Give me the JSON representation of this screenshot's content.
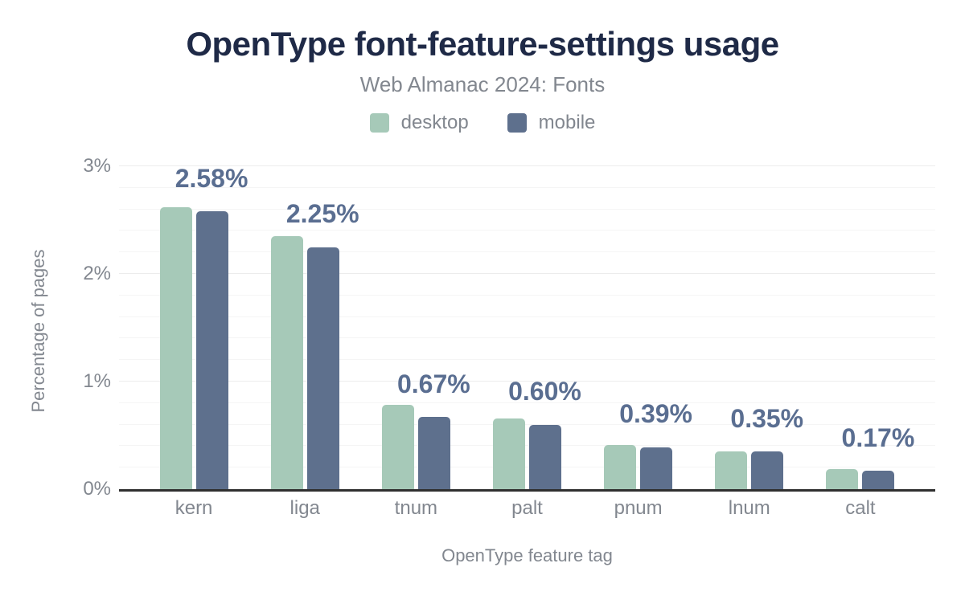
{
  "header": {
    "title": "OpenType font-feature-settings usage",
    "subtitle": "Web Almanac 2024: Fonts"
  },
  "axes": {
    "y_title": "Percentage of pages",
    "x_title": "OpenType feature tag",
    "y_ticks": [
      {
        "label": "0%",
        "value": 0
      },
      {
        "label": "1%",
        "value": 1
      },
      {
        "label": "2%",
        "value": 2
      },
      {
        "label": "3%",
        "value": 3
      }
    ]
  },
  "chart_data": {
    "type": "bar",
    "title": "OpenType font-feature-settings usage",
    "subtitle": "Web Almanac 2024: Fonts",
    "xlabel": "OpenType feature tag",
    "ylabel": "Percentage of pages",
    "categories": [
      "kern",
      "liga",
      "tnum",
      "palt",
      "pnum",
      "lnum",
      "calt"
    ],
    "series": [
      {
        "name": "desktop",
        "color": "#a6c9b8",
        "values": [
          2.62,
          2.35,
          0.78,
          0.66,
          0.41,
          0.35,
          0.19
        ]
      },
      {
        "name": "mobile",
        "color": "#5e708d",
        "values": [
          2.58,
          2.25,
          0.67,
          0.6,
          0.39,
          0.35,
          0.17
        ]
      }
    ],
    "annotations": [
      "2.58%",
      "2.25%",
      "0.67%",
      "0.60%",
      "0.39%",
      "0.35%",
      "0.17%"
    ],
    "annotation_series": "mobile",
    "ylim": [
      0,
      3
    ],
    "ytick_step": 1,
    "grid_step": 0.2,
    "grid": true,
    "legend_position": "top"
  },
  "colors": {
    "background": "#ffffff",
    "title": "#1f2a47",
    "annotation": "#5a6e91",
    "muted_text": "#82878f",
    "grid_minor": "#f5f5f5",
    "grid_major": "#ececec",
    "axis_line": "#2f2f2f"
  }
}
